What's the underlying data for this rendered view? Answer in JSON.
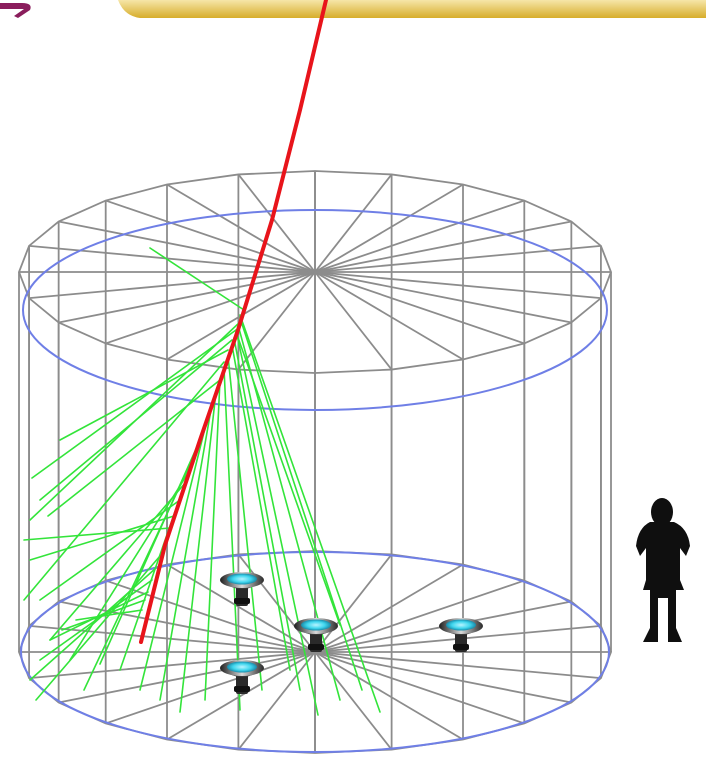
{
  "diagram": {
    "elements": [
      "cylindrical-tank-wireframe",
      "cosmic-muon-track",
      "cherenkov-light-rays",
      "photomultiplier-tubes",
      "human-silhouette-scale"
    ],
    "counts": {
      "radial_segments": 24,
      "photomultiplier_tubes": 4,
      "cherenkov_rays": 34
    },
    "colors": {
      "wireframe": "#8c8c8c",
      "water_level": "#6f7fe6",
      "muon_track": "#e8141b",
      "cherenkov_light": "#33e43a",
      "pmt_glow": "#3fd6ee",
      "pmt_body": "#2a2a2a",
      "silhouette": "#0f0f0f",
      "top_banner": "#e3c24a",
      "corner_mark": "#8a1d5c"
    }
  }
}
